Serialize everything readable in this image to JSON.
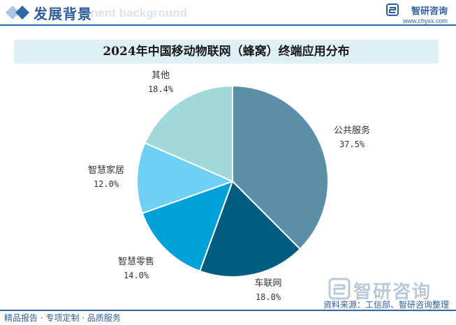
{
  "header": {
    "title": "发展背景",
    "ghost_text": "nent background",
    "brand_name": "智研咨询",
    "brand_url": "www.chyxx.com"
  },
  "chart_data": {
    "type": "pie",
    "title": "2024年中国移动物联网（蜂窝）终端应用分布",
    "slices": [
      {
        "label": "公共服务",
        "value": 37.5,
        "display": "37.5%",
        "color": "#5b8fa8"
      },
      {
        "label": "车联网",
        "value": 18.0,
        "display": "18.0%",
        "color": "#005d80"
      },
      {
        "label": "智慧零售",
        "value": 14.0,
        "display": "14.0%",
        "color": "#00a0d9"
      },
      {
        "label": "智慧家居",
        "value": 12.0,
        "display": "12.0%",
        "color": "#6ed0f4"
      },
      {
        "label": "其他",
        "value": 18.4,
        "display": "18.4%",
        "color": "#a1d8d8"
      }
    ],
    "start_angle_deg": 0,
    "direction": "clockwise"
  },
  "footer": {
    "left_text": "精品报告 · 专项定制 · 品质服务",
    "source": "资料来源：工信部、智研咨询整理",
    "watermark": "智研咨询"
  }
}
